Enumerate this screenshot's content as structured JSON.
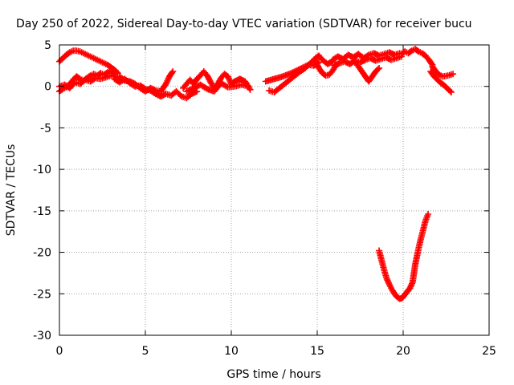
{
  "chart_data": {
    "type": "scatter",
    "title": "Day 250 of 2022, Sidereal Day-to-day VTEC variation (SDTVAR) for receiver bucu",
    "xlabel": "GPS time / hours",
    "ylabel": "SDTVAR / TECUs",
    "xlim": [
      0,
      25
    ],
    "ylim": [
      -30,
      5
    ],
    "xticks": [
      0,
      5,
      10,
      15,
      20,
      25
    ],
    "yticks": [
      5,
      0,
      -5,
      -10,
      -15,
      -20,
      -25,
      -30
    ],
    "grid": true,
    "marker": "+",
    "series_color": "#ff0000",
    "series": [
      {
        "name": "upper-arc-left",
        "points": [
          [
            0.0,
            3.0
          ],
          [
            0.2,
            3.4
          ],
          [
            0.4,
            3.8
          ],
          [
            0.6,
            4.1
          ],
          [
            0.8,
            4.3
          ],
          [
            1.0,
            4.3
          ],
          [
            1.2,
            4.2
          ],
          [
            1.4,
            4.0
          ],
          [
            1.6,
            3.8
          ],
          [
            1.8,
            3.6
          ],
          [
            2.0,
            3.4
          ],
          [
            2.2,
            3.2
          ],
          [
            2.4,
            3.0
          ],
          [
            2.6,
            2.8
          ],
          [
            2.8,
            2.6
          ],
          [
            3.0,
            2.3
          ],
          [
            3.2,
            2.0
          ],
          [
            3.4,
            1.6
          ]
        ]
      },
      {
        "name": "lower-band-0-3h",
        "points": [
          [
            0.0,
            -0.6
          ],
          [
            0.2,
            -0.3
          ],
          [
            0.4,
            -0.1
          ],
          [
            0.6,
            0.3
          ],
          [
            0.8,
            0.8
          ],
          [
            1.0,
            1.2
          ],
          [
            1.2,
            0.9
          ],
          [
            1.4,
            0.7
          ],
          [
            1.6,
            1.0
          ],
          [
            1.8,
            1.3
          ],
          [
            2.0,
            1.5
          ],
          [
            2.2,
            1.3
          ],
          [
            2.4,
            1.6
          ],
          [
            2.6,
            1.4
          ],
          [
            2.8,
            1.7
          ],
          [
            3.0,
            1.9
          ],
          [
            3.2,
            1.2
          ],
          [
            3.4,
            0.8
          ]
        ]
      },
      {
        "name": "lower-band-0-3h-b",
        "points": [
          [
            0.0,
            0.0
          ],
          [
            0.3,
            0.2
          ],
          [
            0.6,
            -0.2
          ],
          [
            0.9,
            0.5
          ],
          [
            1.2,
            0.3
          ],
          [
            1.5,
            0.8
          ],
          [
            1.8,
            0.6
          ],
          [
            2.1,
            1.0
          ],
          [
            2.4,
            0.9
          ],
          [
            2.7,
            1.1
          ],
          [
            3.0,
            1.3
          ]
        ]
      },
      {
        "name": "mid-band-3-7h",
        "points": [
          [
            3.2,
            0.9
          ],
          [
            3.5,
            0.5
          ],
          [
            3.8,
            0.9
          ],
          [
            4.1,
            0.4
          ],
          [
            4.4,
            0.0
          ],
          [
            4.7,
            0.1
          ],
          [
            5.0,
            -0.3
          ],
          [
            5.3,
            -0.5
          ],
          [
            5.6,
            -0.9
          ],
          [
            5.9,
            -1.2
          ],
          [
            6.2,
            -0.9
          ],
          [
            6.5,
            -1.1
          ],
          [
            6.8,
            -0.6
          ],
          [
            7.1,
            -1.2
          ],
          [
            7.4,
            -1.4
          ],
          [
            7.7,
            -0.9
          ],
          [
            8.0,
            -0.6
          ]
        ]
      },
      {
        "name": "mid-band-3-7h-b",
        "points": [
          [
            3.5,
            1.2
          ],
          [
            3.8,
            0.7
          ],
          [
            4.1,
            0.6
          ],
          [
            4.4,
            0.3
          ],
          [
            4.7,
            -0.2
          ],
          [
            5.0,
            -0.6
          ],
          [
            5.3,
            -0.2
          ],
          [
            5.6,
            -0.5
          ],
          [
            5.9,
            -0.6
          ],
          [
            6.2,
            0.3
          ],
          [
            6.4,
            1.2
          ],
          [
            6.6,
            1.8
          ]
        ]
      },
      {
        "name": "mid-band-7-11h",
        "points": [
          [
            7.2,
            -0.2
          ],
          [
            7.4,
            0.3
          ],
          [
            7.6,
            0.8
          ],
          [
            7.8,
            0.3
          ],
          [
            8.0,
            0.9
          ],
          [
            8.2,
            1.3
          ],
          [
            8.4,
            1.8
          ],
          [
            8.6,
            1.3
          ],
          [
            8.8,
            0.5
          ],
          [
            9.0,
            -0.2
          ],
          [
            9.2,
            0.2
          ],
          [
            9.4,
            1.0
          ],
          [
            9.6,
            1.5
          ],
          [
            9.8,
            1.2
          ],
          [
            10.0,
            0.3
          ],
          [
            10.2,
            0.6
          ],
          [
            10.5,
            0.9
          ],
          [
            10.8,
            0.6
          ],
          [
            11.1,
            -0.4
          ]
        ]
      },
      {
        "name": "mid-band-7-11h-b",
        "points": [
          [
            7.4,
            -0.6
          ],
          [
            7.8,
            -0.2
          ],
          [
            8.2,
            0.2
          ],
          [
            8.6,
            -0.3
          ],
          [
            9.0,
            -0.6
          ],
          [
            9.4,
            0.4
          ],
          [
            9.8,
            -0.1
          ],
          [
            10.2,
            0.0
          ],
          [
            10.6,
            0.2
          ],
          [
            11.0,
            0.0
          ]
        ]
      },
      {
        "name": "segment-12-16h",
        "points": [
          [
            12.2,
            -0.5
          ],
          [
            12.5,
            -0.7
          ],
          [
            12.8,
            -0.2
          ],
          [
            13.1,
            0.3
          ],
          [
            13.4,
            0.8
          ],
          [
            13.7,
            1.3
          ],
          [
            14.0,
            1.8
          ],
          [
            14.3,
            2.2
          ],
          [
            14.6,
            2.8
          ],
          [
            14.9,
            3.4
          ],
          [
            15.1,
            3.7
          ],
          [
            15.3,
            3.2
          ],
          [
            15.6,
            2.7
          ],
          [
            15.9,
            3.0
          ]
        ]
      },
      {
        "name": "segment-12-16h-b",
        "points": [
          [
            12.0,
            0.6
          ],
          [
            12.5,
            0.9
          ],
          [
            13.0,
            1.2
          ],
          [
            13.5,
            1.6
          ],
          [
            14.0,
            2.1
          ],
          [
            14.5,
            2.6
          ],
          [
            14.8,
            2.5
          ],
          [
            15.1,
            2.9
          ]
        ]
      },
      {
        "name": "arc-15-16h",
        "points": [
          [
            14.9,
            3.0
          ],
          [
            15.1,
            2.2
          ],
          [
            15.3,
            1.6
          ],
          [
            15.5,
            1.3
          ],
          [
            15.7,
            1.4
          ],
          [
            15.9,
            1.9
          ],
          [
            16.1,
            2.6
          ]
        ]
      },
      {
        "name": "band-16-19h",
        "points": [
          [
            15.9,
            3.2
          ],
          [
            16.2,
            3.6
          ],
          [
            16.5,
            3.3
          ],
          [
            16.8,
            3.8
          ],
          [
            17.1,
            3.5
          ],
          [
            17.4,
            3.9
          ],
          [
            17.7,
            3.4
          ],
          [
            18.0,
            3.8
          ],
          [
            18.3,
            4.0
          ],
          [
            18.6,
            3.7
          ],
          [
            18.9,
            3.9
          ],
          [
            19.2,
            4.1
          ],
          [
            19.5,
            3.8
          ],
          [
            19.8,
            4.0
          ]
        ]
      },
      {
        "name": "band-16-19h-b",
        "points": [
          [
            16.0,
            2.5
          ],
          [
            16.3,
            2.8
          ],
          [
            16.6,
            3.0
          ],
          [
            16.9,
            2.7
          ],
          [
            17.2,
            3.1
          ],
          [
            17.5,
            2.9
          ],
          [
            17.8,
            3.2
          ],
          [
            18.1,
            3.4
          ],
          [
            18.4,
            3.1
          ],
          [
            18.7,
            3.3
          ],
          [
            19.0,
            3.5
          ],
          [
            19.3,
            3.2
          ],
          [
            19.6,
            3.4
          ],
          [
            19.9,
            3.6
          ]
        ]
      },
      {
        "name": "dip-17-18h",
        "points": [
          [
            17.2,
            2.9
          ],
          [
            17.4,
            2.4
          ],
          [
            17.6,
            1.8
          ],
          [
            17.8,
            1.2
          ],
          [
            18.0,
            0.6
          ],
          [
            18.2,
            1.2
          ],
          [
            18.4,
            1.8
          ],
          [
            18.6,
            2.2
          ]
        ]
      },
      {
        "name": "band-20-21h",
        "points": [
          [
            19.9,
            3.9
          ],
          [
            20.1,
            4.2
          ],
          [
            20.3,
            4.0
          ],
          [
            20.5,
            4.3
          ],
          [
            20.7,
            4.5
          ],
          [
            20.9,
            4.2
          ],
          [
            21.1,
            4.0
          ],
          [
            21.3,
            3.7
          ],
          [
            21.5,
            3.2
          ],
          [
            21.7,
            2.6
          ]
        ]
      },
      {
        "name": "tail-21-23h",
        "points": [
          [
            21.7,
            2.4
          ],
          [
            21.9,
            1.8
          ],
          [
            22.1,
            1.4
          ],
          [
            22.3,
            1.2
          ],
          [
            22.6,
            1.3
          ],
          [
            22.9,
            1.5
          ]
        ]
      },
      {
        "name": "tail-21-23h-b",
        "points": [
          [
            21.6,
            1.8
          ],
          [
            21.8,
            1.2
          ],
          [
            22.0,
            0.8
          ],
          [
            22.2,
            0.4
          ],
          [
            22.4,
            0.1
          ],
          [
            22.6,
            -0.3
          ],
          [
            22.8,
            -0.7
          ]
        ]
      },
      {
        "name": "v-dip-19-21h",
        "points": [
          [
            18.6,
            -19.8
          ],
          [
            18.75,
            -21.0
          ],
          [
            18.9,
            -22.2
          ],
          [
            19.05,
            -23.2
          ],
          [
            19.2,
            -23.9
          ],
          [
            19.35,
            -24.5
          ],
          [
            19.5,
            -25.0
          ],
          [
            19.65,
            -25.4
          ],
          [
            19.8,
            -25.6
          ],
          [
            19.95,
            -25.5
          ],
          [
            20.1,
            -25.1
          ],
          [
            20.25,
            -24.7
          ],
          [
            20.4,
            -24.3
          ],
          [
            20.55,
            -23.6
          ],
          [
            20.7,
            -21.5
          ],
          [
            20.85,
            -20.0
          ],
          [
            21.0,
            -18.6
          ],
          [
            21.15,
            -17.4
          ],
          [
            21.3,
            -16.2
          ],
          [
            21.45,
            -15.4
          ]
        ]
      }
    ]
  }
}
